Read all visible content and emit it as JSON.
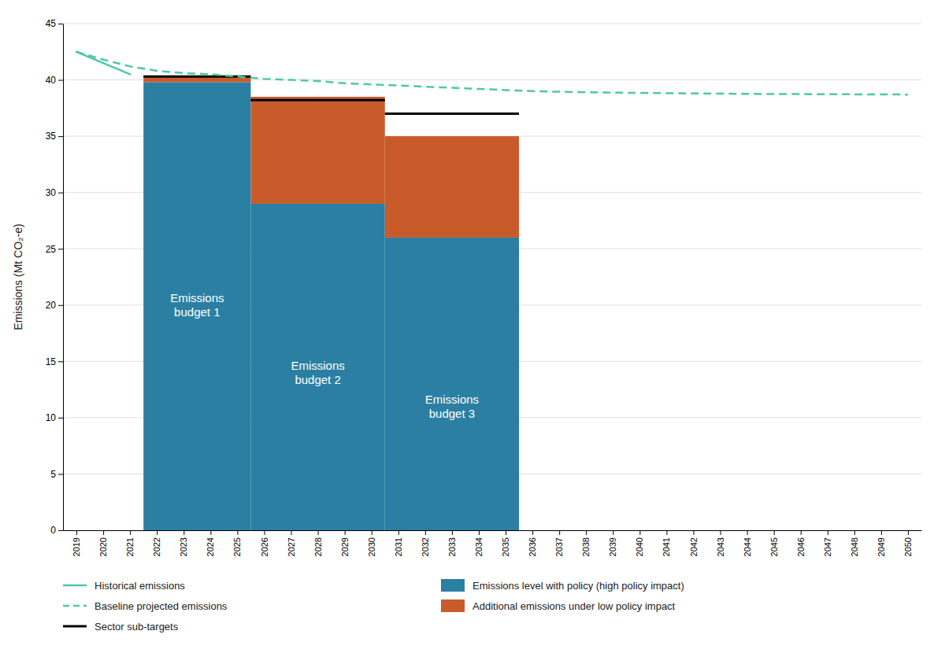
{
  "chart_data": {
    "type": "bar",
    "ylabel": "Emissions (Mt CO₂-e)",
    "xlim": [
      2018.5,
      2050.5
    ],
    "xticks": [
      2019,
      2020,
      2021,
      2022,
      2023,
      2024,
      2025,
      2026,
      2027,
      2028,
      2029,
      2030,
      2031,
      2032,
      2033,
      2034,
      2035,
      2036,
      2037,
      2038,
      2039,
      2040,
      2041,
      2042,
      2043,
      2044,
      2045,
      2046,
      2047,
      2048,
      2049,
      2050
    ],
    "ylim": [
      0,
      45
    ],
    "yticks": [
      0,
      5,
      10,
      15,
      20,
      25,
      30,
      35,
      40,
      45
    ],
    "grid": true,
    "stacked": true,
    "legend": "bottom",
    "series": [
      {
        "name": "Historical emissions",
        "type": "line",
        "line_style": "solid",
        "color": "#4dc8a8",
        "x": [
          2019,
          2020,
          2021
        ],
        "values": [
          42.5,
          41.5,
          40.5
        ]
      },
      {
        "name": "Emissions level with policy (high policy impact)",
        "type": "bar",
        "color": "#2b7fa3",
        "x_start": [
          2022,
          2026,
          2031
        ],
        "x_end": [
          2025,
          2030,
          2035
        ],
        "values": [
          39.8,
          29.0,
          26.0
        ]
      },
      {
        "name": "Baseline projected emissions",
        "type": "line",
        "line_style": "dashed",
        "color": "#4dc8a8",
        "x": [
          2019,
          2020,
          2021,
          2022,
          2023,
          2024,
          2025,
          2026,
          2027,
          2028,
          2029,
          2030,
          2031,
          2032,
          2033,
          2034,
          2035,
          2036,
          2037,
          2038,
          2039,
          2040,
          2041,
          2042,
          2043,
          2044,
          2045,
          2046,
          2047,
          2048,
          2049,
          2050
        ],
        "values": [
          42.5,
          41.8,
          41.2,
          40.8,
          40.6,
          40.5,
          40.3,
          40.1,
          40.0,
          39.9,
          39.7,
          39.6,
          39.5,
          39.4,
          39.3,
          39.2,
          39.1,
          39.0,
          38.95,
          38.9,
          38.87,
          38.85,
          38.82,
          38.8,
          38.78,
          38.76,
          38.75,
          38.74,
          38.73,
          38.72,
          38.71,
          38.7
        ]
      },
      {
        "name": "Additional emissions under low policy impact",
        "type": "bar",
        "color": "#c95b2b",
        "x_start": [
          2022,
          2026,
          2031
        ],
        "x_end": [
          2025,
          2030,
          2035
        ],
        "values": [
          0.55,
          9.5,
          9.0
        ]
      },
      {
        "name": "Sector sub-targets",
        "type": "hline",
        "line_style": "solid",
        "color": "#000000",
        "x_start": [
          2022,
          2026,
          2031
        ],
        "x_end": [
          2025,
          2030,
          2035
        ],
        "values": [
          40.3,
          38.2,
          37.0
        ]
      }
    ],
    "annotations": [
      {
        "text": "Emissions\nbudget 1",
        "x": 2023.5,
        "y": 20
      },
      {
        "text": "Emissions\nbudget 2",
        "x": 2028.0,
        "y": 14
      },
      {
        "text": "Emissions\nbudget 3",
        "x": 2033.0,
        "y": 11
      }
    ]
  }
}
